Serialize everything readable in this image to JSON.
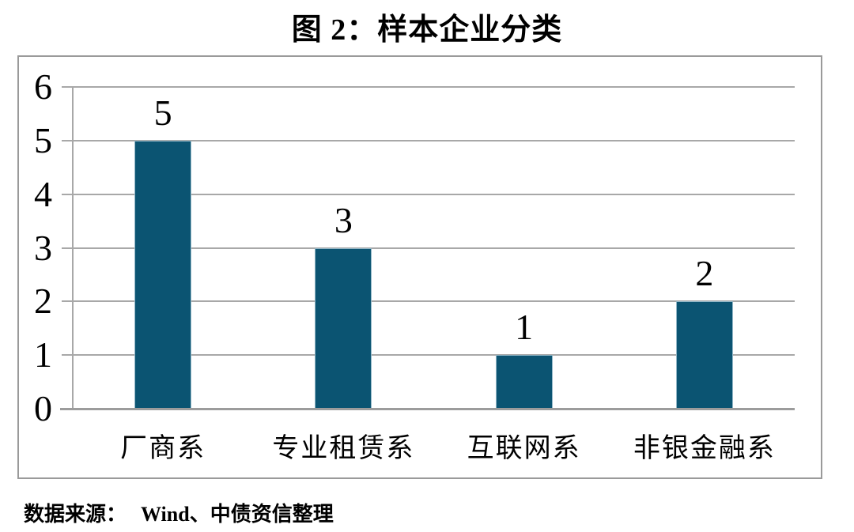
{
  "title": "图 2：样本企业分类",
  "chart_data": {
    "type": "bar",
    "title": "图 2：样本企业分类",
    "categories": [
      "厂商系",
      "专业租赁系",
      "互联网系",
      "非银金融系"
    ],
    "values": [
      5,
      3,
      1,
      2
    ],
    "xlabel": "",
    "ylabel": "",
    "ylim": [
      0,
      6
    ],
    "yticks": [
      0,
      1,
      2,
      3,
      4,
      5,
      6
    ],
    "grid": true,
    "legend": "none",
    "data_labels_shown": true,
    "colors": {
      "bar": "#0b5472",
      "gridline": "#a8a8a8",
      "axis": "#9c9c9c",
      "box_border": "#9a9a9a",
      "text": "#000000"
    }
  },
  "source": {
    "label": "数据来源：",
    "value": "Wind、中债资信整理"
  }
}
